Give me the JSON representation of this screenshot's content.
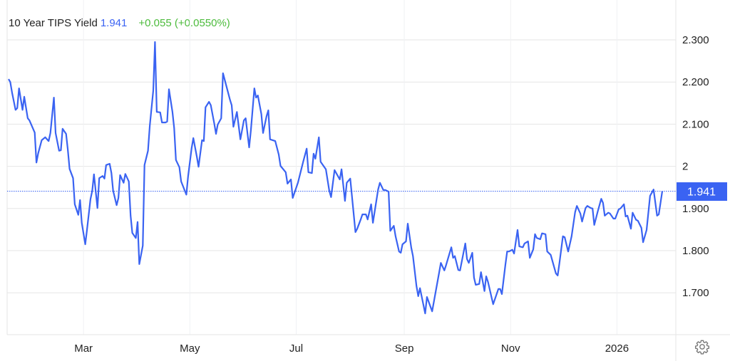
{
  "header": {
    "title": "10 Year TIPS Yield",
    "price": "1.941",
    "change": "+0.055 (+0.0550%)"
  },
  "price_label": "1.941",
  "colors": {
    "line": "#3a63f2",
    "price": "#3b63f3",
    "change": "#4cbb3c",
    "grid": "#e6e6e6"
  },
  "icons": {
    "settings": "gear-icon"
  },
  "chart_data": {
    "type": "line",
    "title": "10 Year TIPS Yield",
    "xlabel": "",
    "ylabel": "",
    "ylim": [
      1.6,
      2.38
    ],
    "grid": true,
    "current_value": 1.941,
    "y_ticks": [
      {
        "value": 2.3,
        "label": "2.300"
      },
      {
        "value": 2.2,
        "label": "2.200"
      },
      {
        "value": 2.1,
        "label": "2.100"
      },
      {
        "value": 2.0,
        "label": "2"
      },
      {
        "value": 1.9,
        "label": "1.900"
      },
      {
        "value": 1.8,
        "label": "1.800"
      },
      {
        "value": 1.7,
        "label": "1.700"
      }
    ],
    "x_ticks": [
      {
        "date": "2025-03-01",
        "label": "Mar"
      },
      {
        "date": "2025-05-01",
        "label": "May"
      },
      {
        "date": "2025-07-01",
        "label": "Jul"
      },
      {
        "date": "2025-09-01",
        "label": "Sep"
      },
      {
        "date": "2025-11-01",
        "label": "Nov"
      },
      {
        "date": "2026-01-01",
        "label": "2026"
      }
    ],
    "series": [
      {
        "points": [
          [
            "2025-01-17",
            2.207
          ],
          [
            "2025-01-18",
            2.2
          ],
          [
            "2025-01-19",
            2.175
          ],
          [
            "2025-01-21",
            2.134
          ],
          [
            "2025-01-22",
            2.138
          ],
          [
            "2025-01-23",
            2.185
          ],
          [
            "2025-01-25",
            2.134
          ],
          [
            "2025-01-26",
            2.165
          ],
          [
            "2025-01-28",
            2.114
          ],
          [
            "2025-01-29",
            2.109
          ],
          [
            "2025-02-01",
            2.08
          ],
          [
            "2025-02-02",
            2.009
          ],
          [
            "2025-02-03",
            2.031
          ],
          [
            "2025-02-05",
            2.062
          ],
          [
            "2025-02-07",
            2.069
          ],
          [
            "2025-02-09",
            2.06
          ],
          [
            "2025-02-10",
            2.079
          ],
          [
            "2025-02-12",
            2.163
          ],
          [
            "2025-02-13",
            2.079
          ],
          [
            "2025-02-15",
            2.037
          ],
          [
            "2025-02-16",
            2.038
          ],
          [
            "2025-02-17",
            2.089
          ],
          [
            "2025-02-19",
            2.077
          ],
          [
            "2025-02-20",
            2.04
          ],
          [
            "2025-02-21",
            1.994
          ],
          [
            "2025-02-23",
            1.972
          ],
          [
            "2025-02-24",
            1.91
          ],
          [
            "2025-02-26",
            1.885
          ],
          [
            "2025-02-27",
            1.92
          ],
          [
            "2025-02-28",
            1.866
          ],
          [
            "2025-03-02",
            1.815
          ],
          [
            "2025-03-03",
            1.849
          ],
          [
            "2025-03-05",
            1.922
          ],
          [
            "2025-03-06",
            1.942
          ],
          [
            "2025-03-07",
            1.981
          ],
          [
            "2025-03-09",
            1.901
          ],
          [
            "2025-03-10",
            1.972
          ],
          [
            "2025-03-12",
            1.977
          ],
          [
            "2025-03-13",
            1.971
          ],
          [
            "2025-03-14",
            2.003
          ],
          [
            "2025-03-16",
            2.006
          ],
          [
            "2025-03-17",
            1.984
          ],
          [
            "2025-03-18",
            1.942
          ],
          [
            "2025-03-20",
            1.908
          ],
          [
            "2025-03-21",
            1.925
          ],
          [
            "2025-03-22",
            1.979
          ],
          [
            "2025-03-24",
            1.961
          ],
          [
            "2025-03-25",
            1.982
          ],
          [
            "2025-03-27",
            1.964
          ],
          [
            "2025-03-28",
            1.883
          ],
          [
            "2025-03-29",
            1.842
          ],
          [
            "2025-03-31",
            1.83
          ],
          [
            "2025-04-01",
            1.868
          ],
          [
            "2025-04-02",
            1.768
          ],
          [
            "2025-04-04",
            1.812
          ],
          [
            "2025-04-05",
            2.003
          ],
          [
            "2025-04-07",
            2.037
          ],
          [
            "2025-04-08",
            2.096
          ],
          [
            "2025-04-10",
            2.18
          ],
          [
            "2025-04-11",
            2.295
          ],
          [
            "2025-04-12",
            2.129
          ],
          [
            "2025-04-14",
            2.128
          ],
          [
            "2025-04-15",
            2.104
          ],
          [
            "2025-04-17",
            2.104
          ],
          [
            "2025-04-18",
            2.106
          ],
          [
            "2025-04-19",
            2.183
          ],
          [
            "2025-04-21",
            2.129
          ],
          [
            "2025-04-22",
            2.091
          ],
          [
            "2025-04-23",
            2.015
          ],
          [
            "2025-04-25",
            1.998
          ],
          [
            "2025-04-26",
            1.964
          ],
          [
            "2025-04-29",
            1.933
          ],
          [
            "2025-04-30",
            1.977
          ],
          [
            "2025-05-02",
            2.043
          ],
          [
            "2025-05-03",
            2.067
          ],
          [
            "2025-05-05",
            2.023
          ],
          [
            "2025-05-06",
            1.999
          ],
          [
            "2025-05-08",
            2.062
          ],
          [
            "2025-05-09",
            2.06
          ],
          [
            "2025-05-10",
            2.14
          ],
          [
            "2025-05-12",
            2.153
          ],
          [
            "2025-05-13",
            2.145
          ],
          [
            "2025-05-15",
            2.102
          ],
          [
            "2025-05-16",
            2.077
          ],
          [
            "2025-05-17",
            2.099
          ],
          [
            "2025-05-19",
            2.114
          ],
          [
            "2025-05-20",
            2.221
          ],
          [
            "2025-05-24",
            2.158
          ],
          [
            "2025-05-25",
            2.145
          ],
          [
            "2025-05-26",
            2.094
          ],
          [
            "2025-05-28",
            2.129
          ],
          [
            "2025-05-30",
            2.064
          ],
          [
            "2025-06-01",
            2.109
          ],
          [
            "2025-06-02",
            2.114
          ],
          [
            "2025-06-04",
            2.045
          ],
          [
            "2025-06-05",
            2.085
          ],
          [
            "2025-06-07",
            2.185
          ],
          [
            "2025-06-08",
            2.163
          ],
          [
            "2025-06-09",
            2.168
          ],
          [
            "2025-06-11",
            2.124
          ],
          [
            "2025-06-12",
            2.079
          ],
          [
            "2025-06-14",
            2.119
          ],
          [
            "2025-06-15",
            2.133
          ],
          [
            "2025-06-16",
            2.064
          ],
          [
            "2025-06-19",
            2.06
          ],
          [
            "2025-06-21",
            2.028
          ],
          [
            "2025-06-22",
            2.001
          ],
          [
            "2025-06-25",
            1.986
          ],
          [
            "2025-06-26",
            1.959
          ],
          [
            "2025-06-28",
            1.969
          ],
          [
            "2025-06-29",
            1.925
          ],
          [
            "2025-07-02",
            1.961
          ],
          [
            "2025-07-05",
            2.011
          ],
          [
            "2025-07-07",
            2.042
          ],
          [
            "2025-07-08",
            1.986
          ],
          [
            "2025-07-10",
            1.984
          ],
          [
            "2025-07-11",
            2.03
          ],
          [
            "2025-07-12",
            2.018
          ],
          [
            "2025-07-14",
            2.069
          ],
          [
            "2025-07-15",
            2.011
          ],
          [
            "2025-07-18",
            1.993
          ],
          [
            "2025-07-20",
            1.942
          ],
          [
            "2025-07-21",
            1.927
          ],
          [
            "2025-07-23",
            1.991
          ],
          [
            "2025-07-26",
            1.969
          ],
          [
            "2025-07-27",
            1.993
          ],
          [
            "2025-07-29",
            1.918
          ],
          [
            "2025-07-30",
            1.961
          ],
          [
            "2025-08-01",
            1.971
          ],
          [
            "2025-08-04",
            1.844
          ],
          [
            "2025-08-05",
            1.852
          ],
          [
            "2025-08-07",
            1.874
          ],
          [
            "2025-08-08",
            1.886
          ],
          [
            "2025-08-10",
            1.886
          ],
          [
            "2025-08-11",
            1.874
          ],
          [
            "2025-08-13",
            1.91
          ],
          [
            "2025-08-14",
            1.866
          ],
          [
            "2025-08-17",
            1.945
          ],
          [
            "2025-08-18",
            1.961
          ],
          [
            "2025-08-20",
            1.944
          ],
          [
            "2025-08-21",
            1.944
          ],
          [
            "2025-08-23",
            1.94
          ],
          [
            "2025-08-24",
            1.847
          ],
          [
            "2025-08-26",
            1.859
          ],
          [
            "2025-08-27",
            1.834
          ],
          [
            "2025-08-29",
            1.798
          ],
          [
            "2025-08-30",
            1.795
          ],
          [
            "2025-08-31",
            1.815
          ],
          [
            "2025-09-02",
            1.822
          ],
          [
            "2025-09-03",
            1.864
          ],
          [
            "2025-09-05",
            1.807
          ],
          [
            "2025-09-06",
            1.787
          ],
          [
            "2025-09-08",
            1.716
          ],
          [
            "2025-09-09",
            1.692
          ],
          [
            "2025-09-10",
            1.711
          ],
          [
            "2025-09-13",
            1.651
          ],
          [
            "2025-09-14",
            1.69
          ],
          [
            "2025-09-17",
            1.656
          ],
          [
            "2025-09-19",
            1.702
          ],
          [
            "2025-09-21",
            1.748
          ],
          [
            "2025-09-22",
            1.771
          ],
          [
            "2025-09-24",
            1.753
          ],
          [
            "2025-09-25",
            1.766
          ],
          [
            "2025-09-28",
            1.808
          ],
          [
            "2025-09-29",
            1.783
          ],
          [
            "2025-09-30",
            1.787
          ],
          [
            "2025-10-02",
            1.754
          ],
          [
            "2025-10-03",
            1.753
          ],
          [
            "2025-10-06",
            1.817
          ],
          [
            "2025-10-07",
            1.78
          ],
          [
            "2025-10-08",
            1.771
          ],
          [
            "2025-10-10",
            1.795
          ],
          [
            "2025-10-11",
            1.736
          ],
          [
            "2025-10-12",
            1.719
          ],
          [
            "2025-10-14",
            1.721
          ],
          [
            "2025-10-15",
            1.749
          ],
          [
            "2025-10-17",
            1.704
          ],
          [
            "2025-10-18",
            1.739
          ],
          [
            "2025-10-19",
            1.726
          ],
          [
            "2025-10-21",
            1.69
          ],
          [
            "2025-10-22",
            1.673
          ],
          [
            "2025-10-25",
            1.709
          ],
          [
            "2025-10-26",
            1.709
          ],
          [
            "2025-10-27",
            1.697
          ],
          [
            "2025-10-29",
            1.766
          ],
          [
            "2025-10-30",
            1.798
          ],
          [
            "2025-10-31",
            1.798
          ],
          [
            "2025-11-02",
            1.802
          ],
          [
            "2025-11-03",
            1.793
          ],
          [
            "2025-11-05",
            1.849
          ],
          [
            "2025-11-06",
            1.81
          ],
          [
            "2025-11-08",
            1.808
          ],
          [
            "2025-11-09",
            1.817
          ],
          [
            "2025-11-11",
            1.822
          ],
          [
            "2025-11-12",
            1.783
          ],
          [
            "2025-11-14",
            1.803
          ],
          [
            "2025-11-15",
            1.839
          ],
          [
            "2025-11-16",
            1.83
          ],
          [
            "2025-11-18",
            1.827
          ],
          [
            "2025-11-19",
            1.841
          ],
          [
            "2025-11-21",
            1.839
          ],
          [
            "2025-11-22",
            1.798
          ],
          [
            "2025-11-24",
            1.79
          ],
          [
            "2025-11-27",
            1.746
          ],
          [
            "2025-11-28",
            1.741
          ],
          [
            "2025-11-29",
            1.77
          ],
          [
            "2025-12-01",
            1.834
          ],
          [
            "2025-12-02",
            1.832
          ],
          [
            "2025-12-04",
            1.798
          ],
          [
            "2025-12-06",
            1.834
          ],
          [
            "2025-12-08",
            1.891
          ],
          [
            "2025-12-09",
            1.906
          ],
          [
            "2025-12-11",
            1.888
          ],
          [
            "2025-12-12",
            1.869
          ],
          [
            "2025-12-14",
            1.901
          ],
          [
            "2025-12-15",
            1.906
          ],
          [
            "2025-12-17",
            1.901
          ],
          [
            "2025-12-18",
            1.9
          ],
          [
            "2025-12-19",
            1.861
          ],
          [
            "2025-12-21",
            1.893
          ],
          [
            "2025-12-23",
            1.923
          ],
          [
            "2025-12-24",
            1.913
          ],
          [
            "2025-12-25",
            1.883
          ],
          [
            "2025-12-27",
            1.89
          ],
          [
            "2025-12-28",
            1.888
          ],
          [
            "2025-12-30",
            1.876
          ],
          [
            "2025-12-31",
            1.876
          ],
          [
            "2026-01-02",
            1.898
          ],
          [
            "2026-01-03",
            1.9
          ],
          [
            "2026-01-05",
            1.91
          ],
          [
            "2026-01-06",
            1.881
          ],
          [
            "2026-01-07",
            1.883
          ],
          [
            "2026-01-09",
            1.852
          ],
          [
            "2026-01-10",
            1.89
          ],
          [
            "2026-01-12",
            1.873
          ],
          [
            "2026-01-13",
            1.871
          ],
          [
            "2026-01-15",
            1.854
          ],
          [
            "2026-01-16",
            1.82
          ],
          [
            "2026-01-18",
            1.849
          ],
          [
            "2026-01-20",
            1.93
          ],
          [
            "2026-01-22",
            1.945
          ],
          [
            "2026-01-24",
            1.883
          ],
          [
            "2026-01-25",
            1.886
          ],
          [
            "2026-01-27",
            1.941
          ]
        ]
      }
    ]
  }
}
